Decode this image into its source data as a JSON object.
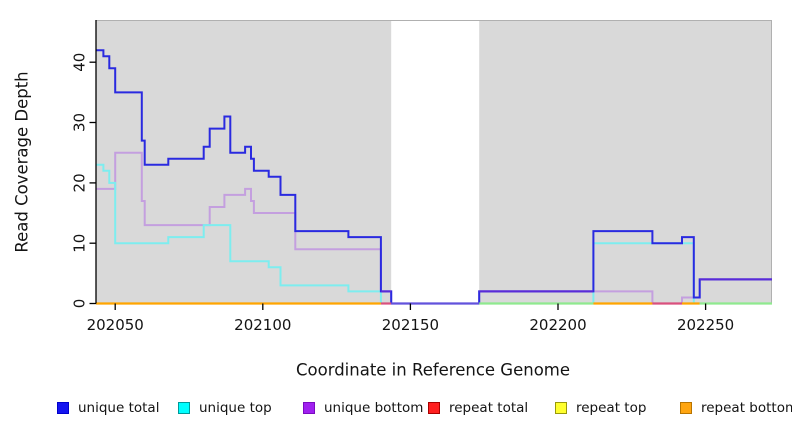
{
  "chart_data": {
    "type": "step-line",
    "title": "",
    "xlabel": "Coordinate in Reference Genome",
    "ylabel": "Read Coverage Depth",
    "xlim": [
      202043.5,
      202272.5
    ],
    "ylim": [
      0,
      47
    ],
    "x_ticks": [
      202050,
      202100,
      202150,
      202200,
      202250
    ],
    "x_tick_labels": [
      "202050",
      "202100",
      "202150",
      "202200",
      "202250"
    ],
    "y_ticks": [
      0,
      10,
      20,
      30,
      40
    ],
    "y_tick_labels": [
      "0",
      "10",
      "20",
      "30",
      "40"
    ],
    "grid": false,
    "legend_position": "bottom",
    "plot_bg": "#d9d9d9",
    "plot_border": "#b0b0b0",
    "axis_color": "#000000",
    "text_color": "#141414",
    "no_data_region": {
      "start": 202143.5,
      "end": 202173.3,
      "fill": "#ffffff"
    },
    "series": [
      {
        "name": "unique total",
        "color": "#2a2ae0",
        "steps": [
          [
            202043.5,
            42
          ],
          [
            202046,
            41
          ],
          [
            202048,
            39
          ],
          [
            202050,
            35
          ],
          [
            202059,
            27
          ],
          [
            202060,
            23
          ],
          [
            202068,
            24
          ],
          [
            202080,
            26
          ],
          [
            202082,
            29
          ],
          [
            202087,
            31
          ],
          [
            202089,
            25
          ],
          [
            202094,
            26
          ],
          [
            202096,
            24
          ],
          [
            202097,
            22
          ],
          [
            202102,
            21
          ],
          [
            202106,
            18
          ],
          [
            202111,
            12
          ],
          [
            202129,
            11
          ],
          [
            202140,
            2
          ],
          [
            202143.5,
            0
          ],
          [
            202173.3,
            2
          ],
          [
            202212,
            12
          ],
          [
            202232,
            10
          ],
          [
            202242,
            11
          ],
          [
            202246,
            1
          ],
          [
            202248,
            4
          ]
        ]
      },
      {
        "name": "unique top",
        "color": "#7dedef",
        "steps": [
          [
            202043.5,
            23
          ],
          [
            202046,
            22
          ],
          [
            202048,
            20
          ],
          [
            202050,
            10
          ],
          [
            202068,
            11
          ],
          [
            202080,
            13
          ],
          [
            202089,
            7
          ],
          [
            202102,
            6
          ],
          [
            202106,
            3
          ],
          [
            202129,
            2
          ],
          [
            202140,
            0
          ],
          [
            202212,
            10
          ],
          [
            202246,
            0
          ]
        ]
      },
      {
        "name": "unique bottom",
        "color": "#c49fdf",
        "steps": [
          [
            202043.5,
            19
          ],
          [
            202050,
            25
          ],
          [
            202059,
            17
          ],
          [
            202060,
            13
          ],
          [
            202082,
            16
          ],
          [
            202087,
            18
          ],
          [
            202094,
            19
          ],
          [
            202096,
            17
          ],
          [
            202097,
            15
          ],
          [
            202111,
            9
          ],
          [
            202140,
            2
          ],
          [
            202143.5,
            0
          ],
          [
            202173.3,
            2
          ],
          [
            202232,
            0
          ],
          [
            202242,
            1
          ],
          [
            202248,
            4
          ]
        ]
      },
      {
        "name": "repeat total",
        "color": "#e03131",
        "steps": [
          [
            202043.5,
            0
          ]
        ]
      },
      {
        "name": "repeat top",
        "color": "#f5f533",
        "steps": [
          [
            202043.5,
            0
          ]
        ]
      },
      {
        "name": "repeat bottom",
        "color": "#ffa500",
        "steps": [
          [
            202043.5,
            0
          ]
        ]
      }
    ],
    "overlap_segments": [
      {
        "start": 202140,
        "end": 202143.5,
        "value": 2,
        "color": "#5a2bd8"
      },
      {
        "start": 202173.3,
        "end": 202212,
        "value": 2,
        "color": "#5a2bd8"
      },
      {
        "start": 202248,
        "end": 202272.5,
        "value": 4,
        "color": "#5a2bd8"
      }
    ],
    "baseline_segments": [
      {
        "start": 202043.5,
        "end": 202140,
        "color": "#ffa500"
      },
      {
        "start": 202140,
        "end": 202143.5,
        "color": "#d9507e"
      },
      {
        "start": 202143.5,
        "end": 202173.3,
        "color": "#6252dc"
      },
      {
        "start": 202173.3,
        "end": 202212,
        "color": "#8fe98f"
      },
      {
        "start": 202212,
        "end": 202232,
        "color": "#ffa500"
      },
      {
        "start": 202232,
        "end": 202242,
        "color": "#d9507e"
      },
      {
        "start": 202242,
        "end": 202248,
        "color": "#ffa500"
      },
      {
        "start": 202248,
        "end": 202272.5,
        "color": "#8fe98f"
      }
    ],
    "legend": [
      {
        "label": "unique total",
        "fill": "#1414f0",
        "border": "#0000cc"
      },
      {
        "label": "unique top",
        "fill": "#00ffff",
        "border": "#009999"
      },
      {
        "label": "unique bottom",
        "fill": "#a020f0",
        "border": "#7a0bc0"
      },
      {
        "label": "repeat total",
        "fill": "#ff1f1f",
        "border": "#a80000"
      },
      {
        "label": "repeat top",
        "fill": "#ffff2e",
        "border": "#99990a"
      },
      {
        "label": "repeat bottom",
        "fill": "#ffa510",
        "border": "#b87400"
      }
    ]
  }
}
